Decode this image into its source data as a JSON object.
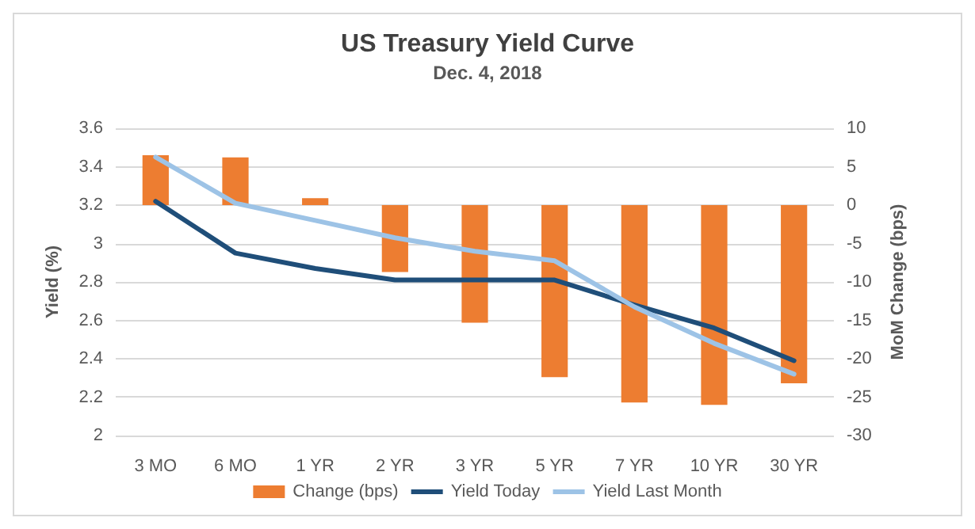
{
  "chart_data": {
    "type": "bar",
    "title": "US Treasury Yield Curve",
    "subtitle": "Dec. 4, 2018",
    "ylabel": "Yield (%)",
    "y2label": "MoM Change (bps)",
    "categories": [
      "3 MO",
      "6 MO",
      "1 YR",
      "2 YR",
      "3 YR",
      "5 YR",
      "7 YR",
      "10 YR",
      "30 YR"
    ],
    "series": [
      {
        "name": "Change (bps)",
        "axis": "y2",
        "color": "#ed7d31",
        "values": [
          6.5,
          6.2,
          0.9,
          -8.7,
          -15.3,
          -22.4,
          -25.7,
          -26,
          -23.2
        ]
      },
      {
        "name": "Yield Today",
        "type": "line",
        "color": "#1f4e79",
        "values": [
          3.22,
          2.95,
          2.87,
          2.81,
          2.81,
          2.81,
          2.68,
          2.56,
          2.39
        ]
      },
      {
        "name": "Yield Last Month",
        "type": "line",
        "color": "#9dc3e6",
        "values": [
          3.45,
          3.21,
          3.12,
          3.03,
          2.96,
          2.91,
          2.67,
          2.48,
          2.32
        ]
      }
    ],
    "ylim": [
      2,
      3.6
    ],
    "yticks": [
      2,
      2.2,
      2.4,
      2.6,
      2.8,
      3,
      3.2,
      3.4,
      3.6
    ],
    "y2lim": [
      -30,
      10
    ],
    "y2ticks": [
      -30,
      -25,
      -20,
      -15,
      -10,
      -5,
      0,
      5,
      10
    ],
    "grid": "y",
    "legend": "bottom",
    "marker": "none",
    "line_style": "solid"
  }
}
